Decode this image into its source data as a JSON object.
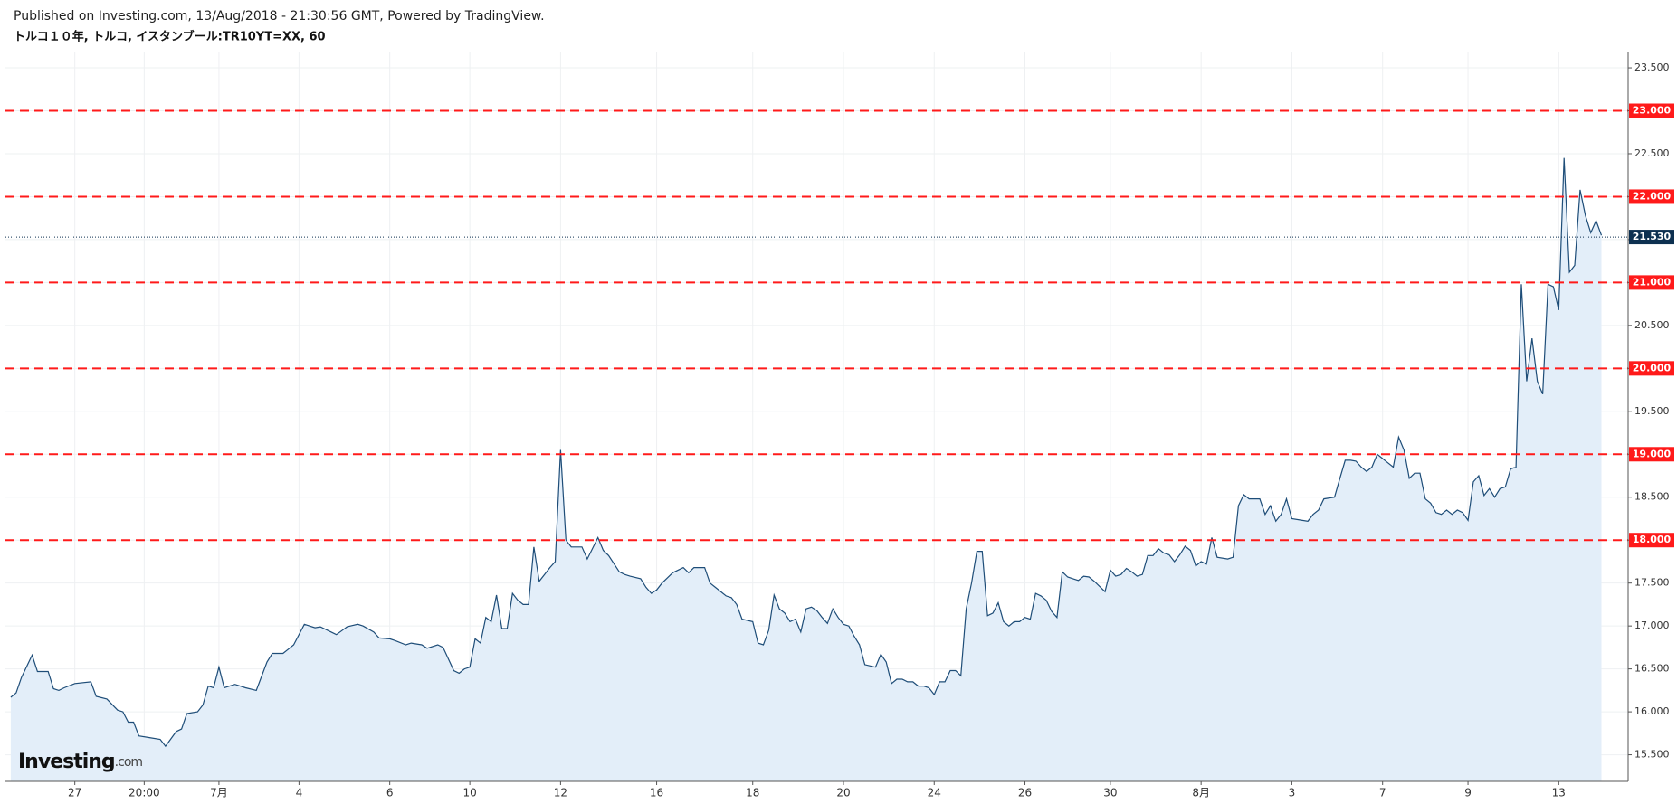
{
  "header": {
    "published": "Published on Investing.com, 13/Aug/2018 - 21:30:56 GMT, Powered by TradingView.",
    "symbol": "トルコ１０年, トルコ, イスタンブール:TR10YT=XX, 60"
  },
  "logo": {
    "brand": "Investing",
    "suffix": ".com"
  },
  "chart_data": {
    "type": "line",
    "grid": true,
    "series": [
      {
        "color": "#1e4d78",
        "fill": "#e3eef9",
        "x": [
          0,
          1,
          2,
          4,
          5,
          7,
          8,
          9,
          10,
          12,
          15,
          16,
          18,
          20,
          21,
          22,
          23,
          24,
          26,
          28,
          29,
          31,
          32,
          33,
          35,
          36,
          37,
          38,
          39,
          40,
          42,
          44,
          46,
          48,
          49,
          51,
          52,
          53,
          55,
          57,
          58,
          60,
          61,
          63,
          65,
          66,
          68,
          69,
          71,
          72,
          74,
          75,
          77,
          78,
          80,
          81,
          83,
          84,
          85,
          86,
          87,
          88,
          89,
          90,
          91,
          92,
          93,
          94,
          95,
          96,
          97,
          98,
          99,
          100,
          101,
          102,
          103,
          104,
          105,
          107,
          108,
          110,
          111,
          112,
          114,
          115,
          116,
          118,
          119,
          120,
          121,
          122,
          124,
          125,
          126,
          127,
          128,
          130,
          131,
          132,
          134,
          135,
          136,
          137,
          139,
          140,
          141,
          142,
          143,
          144,
          145,
          146,
          147,
          148,
          149,
          150,
          151,
          152,
          153,
          154,
          155,
          156,
          157,
          158,
          159,
          160,
          162,
          163,
          164,
          165,
          166,
          167,
          168,
          169,
          170,
          171,
          172,
          173,
          174,
          175,
          176,
          177,
          178,
          179,
          180,
          181,
          182,
          183,
          184,
          185,
          186,
          187,
          188,
          189,
          190,
          191,
          192,
          193,
          194,
          195,
          196,
          197,
          198,
          199,
          200,
          201,
          202,
          203,
          205,
          206,
          207,
          208,
          209,
          210,
          211,
          212,
          213,
          214,
          215,
          216,
          217,
          218,
          219,
          220,
          221,
          222,
          223,
          224,
          225,
          226,
          228,
          229,
          230,
          231,
          232,
          234,
          235,
          236,
          237,
          238,
          239,
          240,
          242,
          243,
          244,
          245,
          246,
          248,
          249,
          250,
          251,
          252,
          253,
          254,
          255,
          256,
          258,
          259,
          260,
          261,
          262,
          263,
          264,
          265,
          266,
          267,
          268,
          269,
          270,
          271,
          272,
          273,
          274,
          275,
          276,
          277,
          278,
          279,
          280,
          281,
          282,
          283,
          284,
          285,
          286,
          287,
          288,
          289,
          290,
          291,
          292,
          293,
          294,
          295,
          296,
          297,
          298
        ],
        "values": [
          16.17,
          16.22,
          16.4,
          16.66,
          16.47,
          16.47,
          16.27,
          16.25,
          16.28,
          16.33,
          16.35,
          16.18,
          16.15,
          16.02,
          16.0,
          15.88,
          15.88,
          15.72,
          15.7,
          15.68,
          15.6,
          15.77,
          15.8,
          15.98,
          16.0,
          16.08,
          16.3,
          16.28,
          16.52,
          16.28,
          16.32,
          16.28,
          16.25,
          16.58,
          16.68,
          16.68,
          16.73,
          16.78,
          17.02,
          16.98,
          16.99,
          16.93,
          16.9,
          16.99,
          17.02,
          17.0,
          16.93,
          16.86,
          16.85,
          16.83,
          16.78,
          16.8,
          16.78,
          16.74,
          16.78,
          16.75,
          16.48,
          16.45,
          16.5,
          16.52,
          16.85,
          16.8,
          17.1,
          17.05,
          17.36,
          16.97,
          16.97,
          17.38,
          17.3,
          17.25,
          17.25,
          17.92,
          17.52,
          17.6,
          17.68,
          17.75,
          19.05,
          18.0,
          17.92,
          17.92,
          17.78,
          18.03,
          17.88,
          17.82,
          17.63,
          17.6,
          17.58,
          17.55,
          17.45,
          17.38,
          17.42,
          17.5,
          17.62,
          17.65,
          17.68,
          17.62,
          17.68,
          17.68,
          17.5,
          17.45,
          17.35,
          17.33,
          17.25,
          17.08,
          17.05,
          16.8,
          16.78,
          16.95,
          17.36,
          17.2,
          17.15,
          17.05,
          17.08,
          16.93,
          17.2,
          17.22,
          17.18,
          17.1,
          17.03,
          17.2,
          17.1,
          17.02,
          17.0,
          16.88,
          16.78,
          16.55,
          16.52,
          16.67,
          16.58,
          16.33,
          16.38,
          16.38,
          16.35,
          16.35,
          16.3,
          16.3,
          16.28,
          16.2,
          16.35,
          16.35,
          16.48,
          16.48,
          16.42,
          17.2,
          17.5,
          17.87,
          17.87,
          17.12,
          17.15,
          17.27,
          17.05,
          17.0,
          17.05,
          17.05,
          17.1,
          17.08,
          17.38,
          17.35,
          17.3,
          17.17,
          17.1,
          17.63,
          17.57,
          17.55,
          17.53,
          17.58,
          17.57,
          17.52,
          17.4,
          17.65,
          17.58,
          17.6,
          17.67,
          17.63,
          17.58,
          17.6,
          17.82,
          17.82,
          17.9,
          17.85,
          17.83,
          17.75,
          17.83,
          17.93,
          17.88,
          17.7,
          17.75,
          17.72,
          18.03,
          17.8,
          17.78,
          17.8,
          18.4,
          18.53,
          18.48,
          18.48,
          18.3,
          18.4,
          18.22,
          18.3,
          18.48,
          18.25,
          18.23,
          18.22,
          18.3,
          18.35,
          18.48,
          18.5,
          18.72,
          18.93,
          18.93,
          18.92,
          18.85,
          18.8,
          18.85,
          19.0,
          18.9,
          18.85,
          19.2,
          19.05,
          18.72,
          18.78,
          18.78,
          18.48,
          18.43,
          18.32,
          18.3,
          18.35,
          18.3,
          18.35,
          18.32,
          18.23,
          18.68,
          18.75,
          18.52,
          18.6,
          18.5,
          18.6,
          18.62,
          18.83,
          18.85,
          20.98,
          19.85,
          20.35,
          19.85,
          19.7,
          20.98,
          20.95,
          20.68,
          22.45,
          21.12,
          21.2,
          22.08,
          21.78,
          21.58,
          21.72,
          21.55
        ]
      }
    ],
    "xlim": [
      -1,
      303
    ],
    "xticks": [
      {
        "value": 12,
        "label": "27"
      },
      {
        "value": 25,
        "label": "20:00"
      },
      {
        "value": 39,
        "label": "7月"
      },
      {
        "value": 54,
        "label": "4"
      },
      {
        "value": 71,
        "label": "6"
      },
      {
        "value": 86,
        "label": "10"
      },
      {
        "value": 103,
        "label": "12"
      },
      {
        "value": 121,
        "label": "16"
      },
      {
        "value": 139,
        "label": "18"
      },
      {
        "value": 156,
        "label": "20"
      },
      {
        "value": 173,
        "label": "24"
      },
      {
        "value": 190,
        "label": "26"
      },
      {
        "value": 206,
        "label": "30"
      },
      {
        "value": 223,
        "label": "8月"
      },
      {
        "value": 240,
        "label": "3"
      },
      {
        "value": 257,
        "label": "7"
      },
      {
        "value": 273,
        "label": "9"
      },
      {
        "value": 290,
        "label": "13"
      }
    ],
    "ylim": [
      15.19,
      23.69
    ],
    "yticks": [
      {
        "value": 15.5,
        "label": "15.500"
      },
      {
        "value": 16,
        "label": "16.000"
      },
      {
        "value": 16.5,
        "label": "16.500"
      },
      {
        "value": 17,
        "label": "17.000"
      },
      {
        "value": 17.5,
        "label": "17.500"
      },
      {
        "value": 18,
        "label": "18.000"
      },
      {
        "value": 18.5,
        "label": "18.500"
      },
      {
        "value": 19,
        "label": "19.000"
      },
      {
        "value": 19.5,
        "label": "19.500"
      },
      {
        "value": 20,
        "label": "20.000"
      },
      {
        "value": 20.5,
        "label": "20.500"
      },
      {
        "value": 21,
        "label": "21.000"
      },
      {
        "value": 21.5,
        "label": "21.500"
      },
      {
        "value": 22,
        "label": "22.000"
      },
      {
        "value": 22.5,
        "label": "22.500"
      },
      {
        "value": 23,
        "label": "23.000"
      },
      {
        "value": 23.5,
        "label": "23.500"
      }
    ],
    "h_lines": {
      "color": "#ff1a1a",
      "levels": [
        {
          "value": 18,
          "label": "18.000"
        },
        {
          "value": 19,
          "label": "19.000"
        },
        {
          "value": 20,
          "label": "20.000"
        },
        {
          "value": 21,
          "label": "21.000"
        },
        {
          "value": 22,
          "label": "22.000"
        },
        {
          "value": 23,
          "label": "23.000"
        }
      ]
    },
    "last_price": {
      "value": 21.53,
      "label": "21.530",
      "color": "#0d3050"
    }
  }
}
